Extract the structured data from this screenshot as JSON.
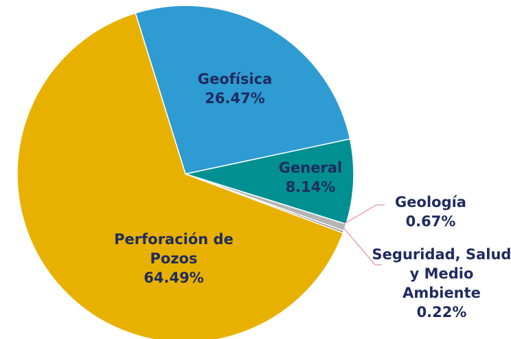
{
  "chart_data": {
    "type": "pie",
    "categories": [
      "Geofísica",
      "General",
      "Geología",
      "Seguridad, Salud y Medio Ambiente",
      "Perforación de Pozos"
    ],
    "values": [
      26.47,
      8.14,
      0.67,
      0.22,
      64.49
    ],
    "value_labels": [
      "26.47%",
      "8.14%",
      "0.67%",
      "0.22%",
      "64.49%"
    ],
    "colors": [
      "#2e9bd3",
      "#009092",
      "#b4b4b4",
      "#8e8e8e",
      "#e8b100"
    ]
  }
}
